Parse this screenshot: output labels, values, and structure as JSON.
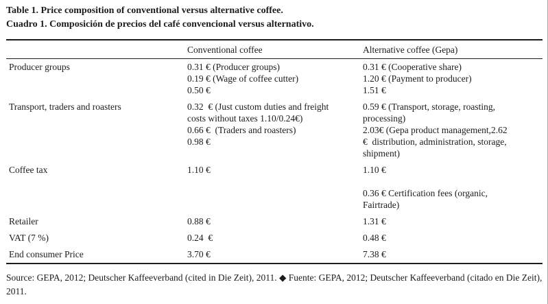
{
  "page": {
    "title_en": "Table 1. Price composition of conventional versus alternative coffee.",
    "title_es": "Cuadro 1. Composición de precios del café convencional versus alternativo."
  },
  "table": {
    "columns": [
      "",
      "Conventional coffee",
      "Alternative coffee (Gepa)"
    ],
    "rows": [
      {
        "label": "Producer groups",
        "conventional": [
          "0.31 € (Producer groups)",
          "0.19 € (Wage of coffee cutter)",
          "0.50 €"
        ],
        "alternative": [
          "0.31 € (Cooperative share)",
          "1.20 € (Payment to producer)",
          "1.51 €"
        ],
        "spacer": false
      },
      {
        "label": "Transport, traders and roasters",
        "conventional": [
          "0.32  € (Just custom duties and freight",
          "costs without taxes 1.10/0.24€)",
          "0.66 €  (Traders and roasters)",
          "0.98 €"
        ],
        "alternative": [
          "0.59 € (Transport, storage, roasting,",
          "processing)",
          "2.03€ (Gepa product management,2.62",
          "€  distribution, administration, storage,",
          "shipment)"
        ],
        "spacer": false
      },
      {
        "label": "Coffee tax",
        "conventional": [
          "1.10 €"
        ],
        "alternative": [
          "1.10 €"
        ],
        "spacer": false
      },
      {
        "label": "",
        "conventional": [],
        "alternative": [
          "0.36 € Certification fees (organic,",
          "Fairtrade)"
        ],
        "spacer": true
      },
      {
        "label": "Retailer",
        "conventional": [
          "0.88 €"
        ],
        "alternative": [
          "1.31 €"
        ],
        "spacer": false
      },
      {
        "label": "VAT (7 %)",
        "conventional": [
          "0.24  €"
        ],
        "alternative": [
          "0.48 €"
        ],
        "spacer": false
      },
      {
        "label": "End consumer Price",
        "conventional": [
          "3.70 €"
        ],
        "alternative": [
          "7.38 €"
        ],
        "spacer": false
      }
    ]
  },
  "footer": {
    "source": "Source: GEPA, 2012; Deutscher Kaffeeverband (cited in Die Zeit), 2011. ◆ Fuente: GEPA, 2012; Deutscher Kaffeeverband (citado en Die Zeit), 2011."
  }
}
